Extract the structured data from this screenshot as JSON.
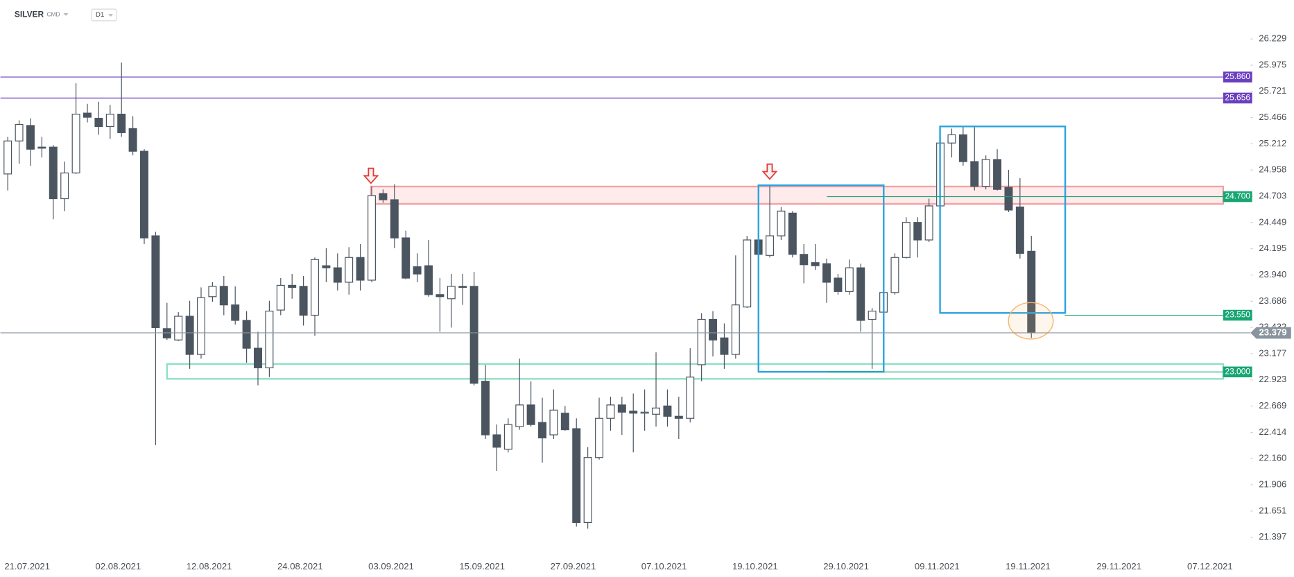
{
  "chart_data": {
    "type": "candlestick",
    "title": "SILVER",
    "subtitle": "CMD",
    "timeframe": "D1",
    "up_color": "#ffffff",
    "down_color": "#4a5560",
    "grid": false,
    "ylim": [
      21.14,
      26.607
    ],
    "yticks": [
      26.229,
      25.975,
      25.721,
      25.466,
      25.212,
      24.958,
      24.703,
      24.449,
      24.195,
      {
        "value": 23.94,
        "label": "23.940"
      },
      23.686,
      23.432,
      23.177,
      22.923,
      22.669,
      22.414,
      {
        "value": 22.16,
        "label": "22.160"
      },
      21.906,
      21.651,
      21.397
    ],
    "categories": [
      null,
      null,
      "21.07.2021",
      null,
      null,
      null,
      null,
      null,
      null,
      null,
      "02.08.2021",
      null,
      null,
      null,
      null,
      null,
      null,
      null,
      "12.08.2021",
      null,
      null,
      null,
      null,
      null,
      null,
      null,
      "24.08.2021",
      null,
      null,
      null,
      null,
      null,
      null,
      null,
      "03.09.2021",
      null,
      null,
      null,
      null,
      null,
      null,
      null,
      "15.09.2021",
      null,
      null,
      null,
      null,
      null,
      null,
      null,
      "27.09.2021",
      null,
      null,
      null,
      null,
      null,
      null,
      null,
      "07.10.2021",
      null,
      null,
      null,
      null,
      null,
      null,
      null,
      "19.10.2021",
      null,
      null,
      null,
      null,
      null,
      null,
      null,
      "29.10.2021",
      null,
      null,
      null,
      null,
      null,
      null,
      null,
      "09.11.2021",
      null,
      null,
      null,
      null,
      null,
      null,
      null,
      "19.11.2021",
      null,
      null,
      null,
      null,
      null,
      null,
      null,
      "29.11.2021",
      null,
      null,
      null,
      null,
      null,
      null,
      null,
      "07.12.2021"
    ],
    "open": [
      24.92,
      25.24,
      25.39,
      25.18,
      25.18,
      24.68,
      24.93,
      25.51,
      25.46,
      25.38,
      25.5,
      25.36,
      25.14,
      24.32,
      23.42,
      23.31,
      23.54,
      23.17,
      23.73,
      23.83,
      23.65,
      23.5,
      23.23,
      23.04,
      23.6,
      23.84,
      23.83,
      23.55,
      24.03,
      24.01,
      23.87,
      24.11,
      23.89,
      24.73,
      24.67,
      24.3,
      24.02,
      24.03,
      23.75,
      23.71,
      23.83,
      23.83,
      22.91,
      22.39,
      22.25,
      22.47,
      22.68,
      22.51,
      22.39,
      22.6,
      22.45,
      21.54,
      22.17,
      22.55,
      22.68,
      22.62,
      22.6,
      22.59,
      22.67,
      22.57,
      22.55,
      23.07,
      23.51,
      23.33,
      23.17,
      23.63,
      24.28,
      24.13,
      24.32,
      24.54,
      24.14,
      24.06,
      24.05,
      23.91,
      23.78,
      24.01,
      23.51,
      23.58,
      23.77,
      24.11,
      24.45,
      24.28,
      24.61,
      25.22,
      25.3,
      25.04,
      24.8,
      25.06,
      24.79,
      24.6,
      24.17,
      null,
      null,
      null,
      null,
      null,
      null,
      null,
      null,
      null,
      null,
      null,
      null,
      null,
      null,
      null,
      null
    ],
    "high": [
      25.28,
      25.44,
      25.46,
      25.28,
      25.2,
      25.04,
      25.8,
      25.6,
      25.62,
      25.59,
      26.0,
      25.48,
      25.16,
      24.36,
      23.67,
      23.58,
      23.69,
      23.82,
      23.87,
      23.93,
      23.83,
      23.59,
      23.39,
      23.69,
      23.91,
      23.95,
      23.93,
      24.11,
      24.2,
      24.15,
      24.21,
      24.24,
      24.8,
      24.77,
      24.82,
      24.37,
      24.15,
      24.28,
      23.91,
      23.95,
      23.95,
      23.97,
      23.07,
      22.49,
      22.55,
      23.13,
      22.91,
      22.75,
      22.83,
      22.67,
      22.55,
      22.27,
      22.75,
      22.76,
      22.76,
      22.79,
      22.83,
      23.19,
      22.83,
      22.76,
      23.23,
      23.57,
      23.59,
      23.47,
      24.13,
      24.32,
      24.36,
      24.8,
      24.6,
      24.56,
      24.24,
      24.24,
      24.1,
      23.95,
      24.09,
      24.05,
      23.62,
      23.78,
      24.15,
      24.5,
      24.5,
      24.68,
      25.28,
      25.36,
      25.38,
      25.39,
      25.1,
      25.16,
      24.96,
      24.88,
      24.32,
      null,
      null,
      null,
      null,
      null,
      null,
      null,
      null,
      null,
      null,
      null,
      null,
      null,
      null,
      null,
      null
    ],
    "low": [
      24.76,
      25.02,
      25.0,
      25.08,
      24.48,
      24.56,
      24.92,
      25.42,
      25.3,
      25.26,
      25.28,
      25.1,
      24.24,
      22.29,
      23.31,
      23.3,
      23.03,
      23.13,
      23.68,
      23.55,
      23.46,
      23.09,
      22.87,
      22.95,
      23.55,
      23.71,
      23.45,
      23.35,
      23.87,
      23.79,
      23.75,
      23.79,
      23.87,
      24.64,
      24.2,
      23.9,
      23.87,
      23.73,
      23.39,
      23.43,
      23.65,
      22.87,
      22.35,
      22.04,
      22.22,
      22.44,
      22.47,
      22.12,
      22.35,
      22.43,
      21.5,
      21.48,
      22.15,
      22.43,
      22.39,
      22.22,
      22.43,
      22.47,
      22.47,
      22.35,
      22.51,
      22.91,
      23.15,
      23.03,
      23.13,
      23.62,
      24.1,
      24.11,
      24.28,
      24.11,
      23.86,
      23.99,
      23.67,
      23.75,
      23.75,
      23.39,
      23.03,
      23.55,
      23.75,
      24.1,
      24.11,
      24.26,
      24.6,
      25.08,
      25.0,
      24.76,
      24.77,
      24.76,
      24.55,
      24.1,
      23.33,
      null,
      null,
      null,
      null,
      null,
      null,
      null,
      null,
      null,
      null,
      null,
      null,
      null,
      null,
      null,
      null
    ],
    "close": [
      25.24,
      25.4,
      25.16,
      25.17,
      24.68,
      24.93,
      25.5,
      25.47,
      25.38,
      25.5,
      25.32,
      25.14,
      24.3,
      23.43,
      23.33,
      23.54,
      23.17,
      23.72,
      23.83,
      23.65,
      23.5,
      23.23,
      23.04,
      23.59,
      23.84,
      23.82,
      23.55,
      24.09,
      24.01,
      23.87,
      24.11,
      23.89,
      24.71,
      24.67,
      24.3,
      23.91,
      23.95,
      23.75,
      23.73,
      23.83,
      23.82,
      22.89,
      22.39,
      22.27,
      22.49,
      22.68,
      22.49,
      22.36,
      22.63,
      22.44,
      21.54,
      22.17,
      22.55,
      22.68,
      22.61,
      22.6,
      22.61,
      22.65,
      22.57,
      22.55,
      22.95,
      23.51,
      23.31,
      23.17,
      23.65,
      24.28,
      24.14,
      24.32,
      24.56,
      24.14,
      24.04,
      24.03,
      23.87,
      23.78,
      24.01,
      23.5,
      23.59,
      23.77,
      24.11,
      24.45,
      24.28,
      24.61,
      25.22,
      25.3,
      25.04,
      24.8,
      25.06,
      24.77,
      24.57,
      24.15,
      23.379,
      null,
      null,
      null,
      null,
      null,
      null,
      null,
      null,
      null,
      null,
      null,
      null,
      null,
      null,
      null,
      null
    ],
    "levels": [
      {
        "value": 25.86,
        "label": "25.860",
        "color": "#6a3fbf"
      },
      {
        "value": 25.656,
        "label": "25.656",
        "color": "#6a3fbf"
      },
      {
        "value": 24.7,
        "label": "24.700",
        "color": "#17a673"
      },
      {
        "value": 23.55,
        "label": "23.550",
        "color": "#17a673"
      },
      {
        "value": 23.0,
        "label": "23.000",
        "color": "#17a673"
      }
    ],
    "last_price": 23.379,
    "last_price_color": "#8a949e"
  }
}
